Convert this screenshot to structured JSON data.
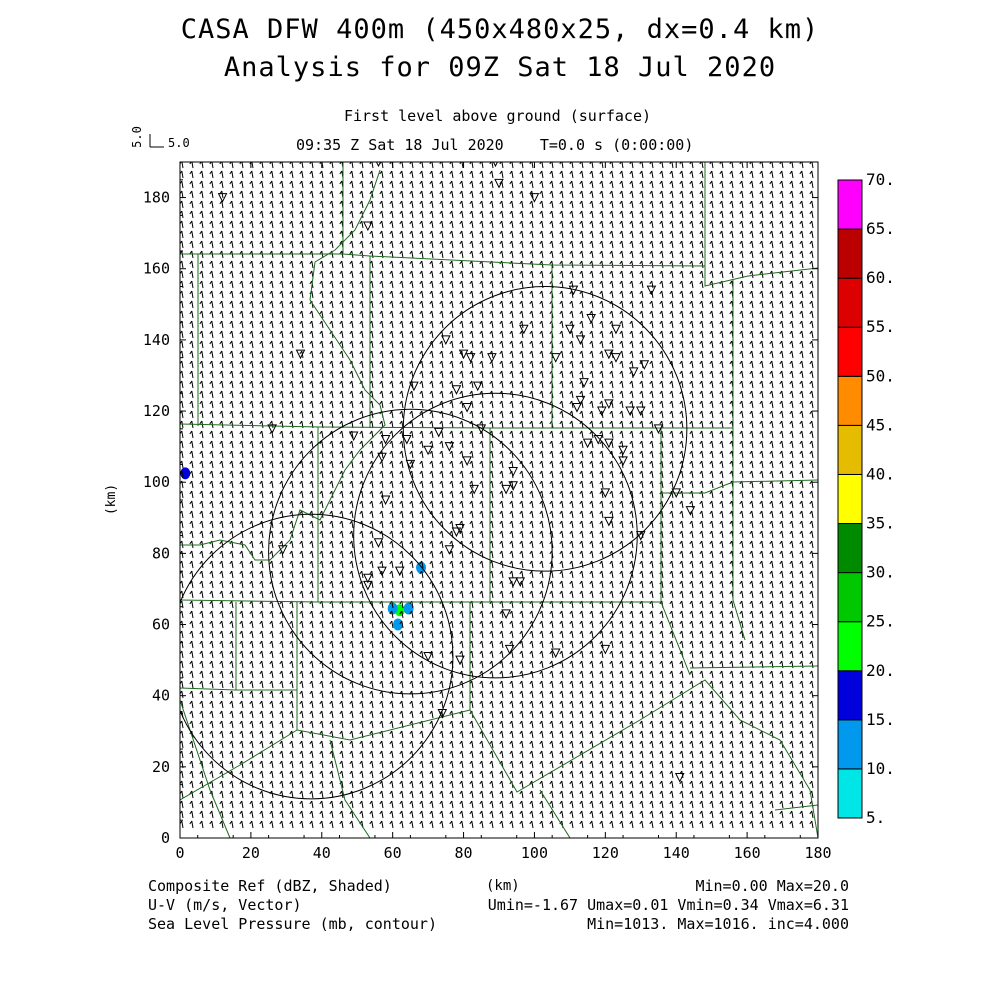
{
  "header": {
    "title_line1": "CASA DFW 400m (450x480x25, dx=0.4 km)",
    "title_line2": "Analysis for 09Z Sat 18 Jul 2020",
    "level": "First level above ground (surface)",
    "time": "09:35 Z Sat 18 Jul 2020    T=0.0 s (0:00:00)",
    "vector_scale": "5.0",
    "vector_scale_rotated": "5.0"
  },
  "footer": {
    "field1": "Composite Ref (dBZ, Shaded)",
    "field2": "U-V (m/s, Vector)",
    "field3": "Sea Level Pressure (mb, contour)",
    "stats1": "Min=0.00 Max=20.0",
    "stats2": "Umin=-1.67 Umax=0.01 Vmin=0.34 Vmax=6.31",
    "stats3": "Min=1013. Max=1016. inc=4.000"
  },
  "chart_data": {
    "type": "heatmap",
    "xlabel": "(km)",
    "ylabel": "(km)",
    "xlim": [
      0,
      180
    ],
    "ylim": [
      0,
      190
    ],
    "xticks": [
      0,
      20,
      40,
      60,
      80,
      100,
      120,
      140,
      160,
      180
    ],
    "yticks": [
      0,
      20,
      40,
      60,
      80,
      100,
      120,
      140,
      160,
      180
    ],
    "colorbar": {
      "levels": [
        5,
        10,
        15,
        20,
        25,
        30,
        35,
        40,
        45,
        50,
        55,
        60,
        65,
        70
      ],
      "labels": [
        "5.",
        "10.",
        "15.",
        "20.",
        "25.",
        "30.",
        "35.",
        "40.",
        "45.",
        "50.",
        "55.",
        "60.",
        "65.",
        "70."
      ],
      "colors": [
        "#00e5e5",
        "#0099ee",
        "#0000dd",
        "#00ff00",
        "#00c800",
        "#008a00",
        "#ffff00",
        "#e5bc00",
        "#ff8c00",
        "#ff0000",
        "#dd0000",
        "#bb0000",
        "#ff00ff"
      ]
    },
    "reflectivity_echoes": [
      {
        "x": 1.5,
        "y": 102.5,
        "dbz": 15
      },
      {
        "x": 62,
        "y": 64,
        "dbz": 20
      },
      {
        "x": 60,
        "y": 64.5,
        "dbz": 12
      },
      {
        "x": 64.5,
        "y": 64.5,
        "dbz": 12
      },
      {
        "x": 61.5,
        "y": 60,
        "dbz": 10
      },
      {
        "x": 68,
        "y": 76,
        "dbz": 10
      }
    ],
    "radar_rings": [
      {
        "cx": 103,
        "cy": 115,
        "r": 40
      },
      {
        "cx": 89,
        "cy": 85,
        "r": 40
      },
      {
        "cx": 65,
        "cy": 80.5,
        "r": 40
      },
      {
        "cx": 37,
        "cy": 51,
        "r": 40
      }
    ],
    "stations": [
      [
        56,
        190
      ],
      [
        89,
        190
      ],
      [
        90,
        184
      ],
      [
        12,
        180
      ],
      [
        100,
        180
      ],
      [
        53,
        172
      ],
      [
        111,
        154
      ],
      [
        133,
        154
      ],
      [
        116,
        146
      ],
      [
        110,
        143
      ],
      [
        123,
        143
      ],
      [
        97,
        143
      ],
      [
        75,
        140
      ],
      [
        113,
        140
      ],
      [
        34,
        136
      ],
      [
        80,
        136
      ],
      [
        82,
        135
      ],
      [
        88,
        135
      ],
      [
        121,
        136
      ],
      [
        123,
        135
      ],
      [
        106,
        135
      ],
      [
        131,
        133
      ],
      [
        128,
        131
      ],
      [
        114,
        128
      ],
      [
        66,
        127
      ],
      [
        78,
        126
      ],
      [
        84,
        127
      ],
      [
        113,
        123
      ],
      [
        121,
        122
      ],
      [
        112,
        121
      ],
      [
        119,
        120
      ],
      [
        81,
        121
      ],
      [
        127,
        120
      ],
      [
        130,
        120
      ],
      [
        73,
        114
      ],
      [
        135,
        115
      ],
      [
        26,
        115
      ],
      [
        49,
        113
      ],
      [
        58,
        112
      ],
      [
        64,
        112
      ],
      [
        76,
        110
      ],
      [
        85,
        115
      ],
      [
        118,
        112
      ],
      [
        115,
        111
      ],
      [
        121,
        111
      ],
      [
        125,
        109
      ],
      [
        70,
        109
      ],
      [
        57,
        107
      ],
      [
        65,
        105
      ],
      [
        81,
        106
      ],
      [
        125,
        106
      ],
      [
        94,
        103
      ],
      [
        83,
        98
      ],
      [
        92,
        98
      ],
      [
        94,
        99
      ],
      [
        120,
        97
      ],
      [
        140,
        97
      ],
      [
        144,
        92
      ],
      [
        58,
        95
      ],
      [
        121,
        89
      ],
      [
        56,
        83
      ],
      [
        79,
        87
      ],
      [
        78,
        86
      ],
      [
        130,
        85
      ],
      [
        29,
        81
      ],
      [
        76,
        81
      ],
      [
        57,
        75
      ],
      [
        62,
        75
      ],
      [
        53,
        73
      ],
      [
        53,
        71
      ],
      [
        94,
        72
      ],
      [
        96,
        72
      ],
      [
        92,
        63
      ],
      [
        93,
        53
      ],
      [
        120,
        53
      ],
      [
        106,
        52
      ],
      [
        70,
        51
      ],
      [
        79,
        50
      ],
      [
        74,
        35
      ],
      [
        141,
        17
      ]
    ]
  }
}
